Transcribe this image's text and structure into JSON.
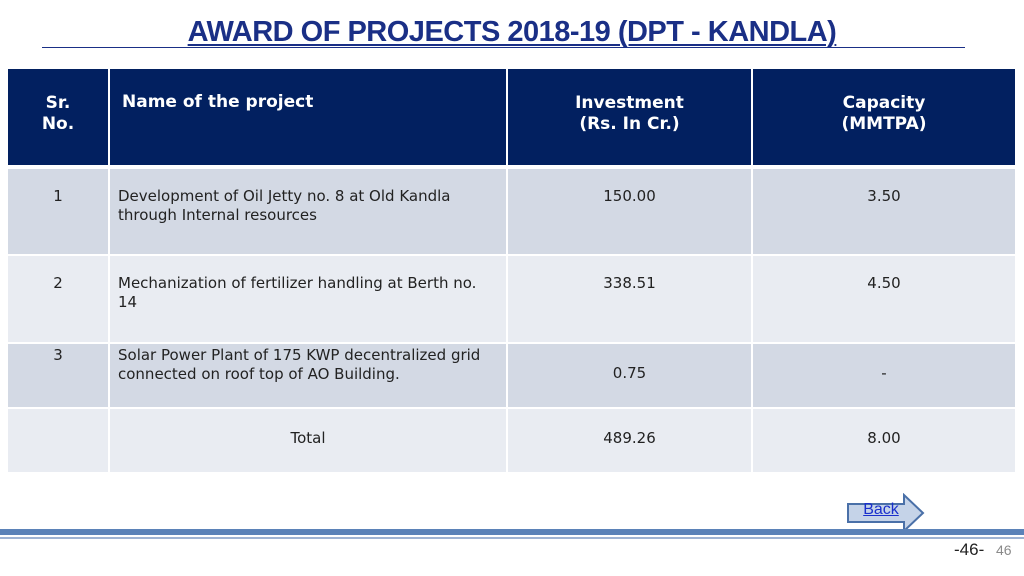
{
  "title": "AWARD OF PROJECTS 2018-19 (DPT - KANDLA)",
  "table": {
    "headers": {
      "sr_line1": "Sr.",
      "sr_line2": "No.",
      "name": "Name of the project",
      "investment_line1": "Investment",
      "investment_line2": "(Rs. In Cr.)",
      "capacity_line1": "Capacity",
      "capacity_line2": "(MMTPA)"
    },
    "rows": [
      {
        "sr": "1",
        "name": "Development of Oil Jetty no. 8 at Old Kandla through Internal resources",
        "investment": "150.00",
        "capacity": "3.50"
      },
      {
        "sr": "2",
        "name": "Mechanization of fertilizer handling at Berth no. 14",
        "investment": "338.51",
        "capacity": "4.50"
      },
      {
        "sr": "3",
        "name": "Solar Power Plant of 175 KWP decentralized grid connected on roof top of AO Building.",
        "investment": "0.75",
        "capacity": "-"
      }
    ],
    "total": {
      "label": "Total",
      "investment": "489.26",
      "capacity": "8.00"
    }
  },
  "navigation": {
    "back_label": "Back"
  },
  "footer": {
    "page_label": "-46-",
    "slide_number": "46"
  },
  "colors": {
    "header_bg": "#022060",
    "title": "#1a2f86",
    "row_dark": "#d3d9e4",
    "row_light": "#e9ecf2",
    "arrow_fill": "#c5d3e8",
    "arrow_stroke": "#4a70a8",
    "bottom_bar": "#5b82b8"
  }
}
